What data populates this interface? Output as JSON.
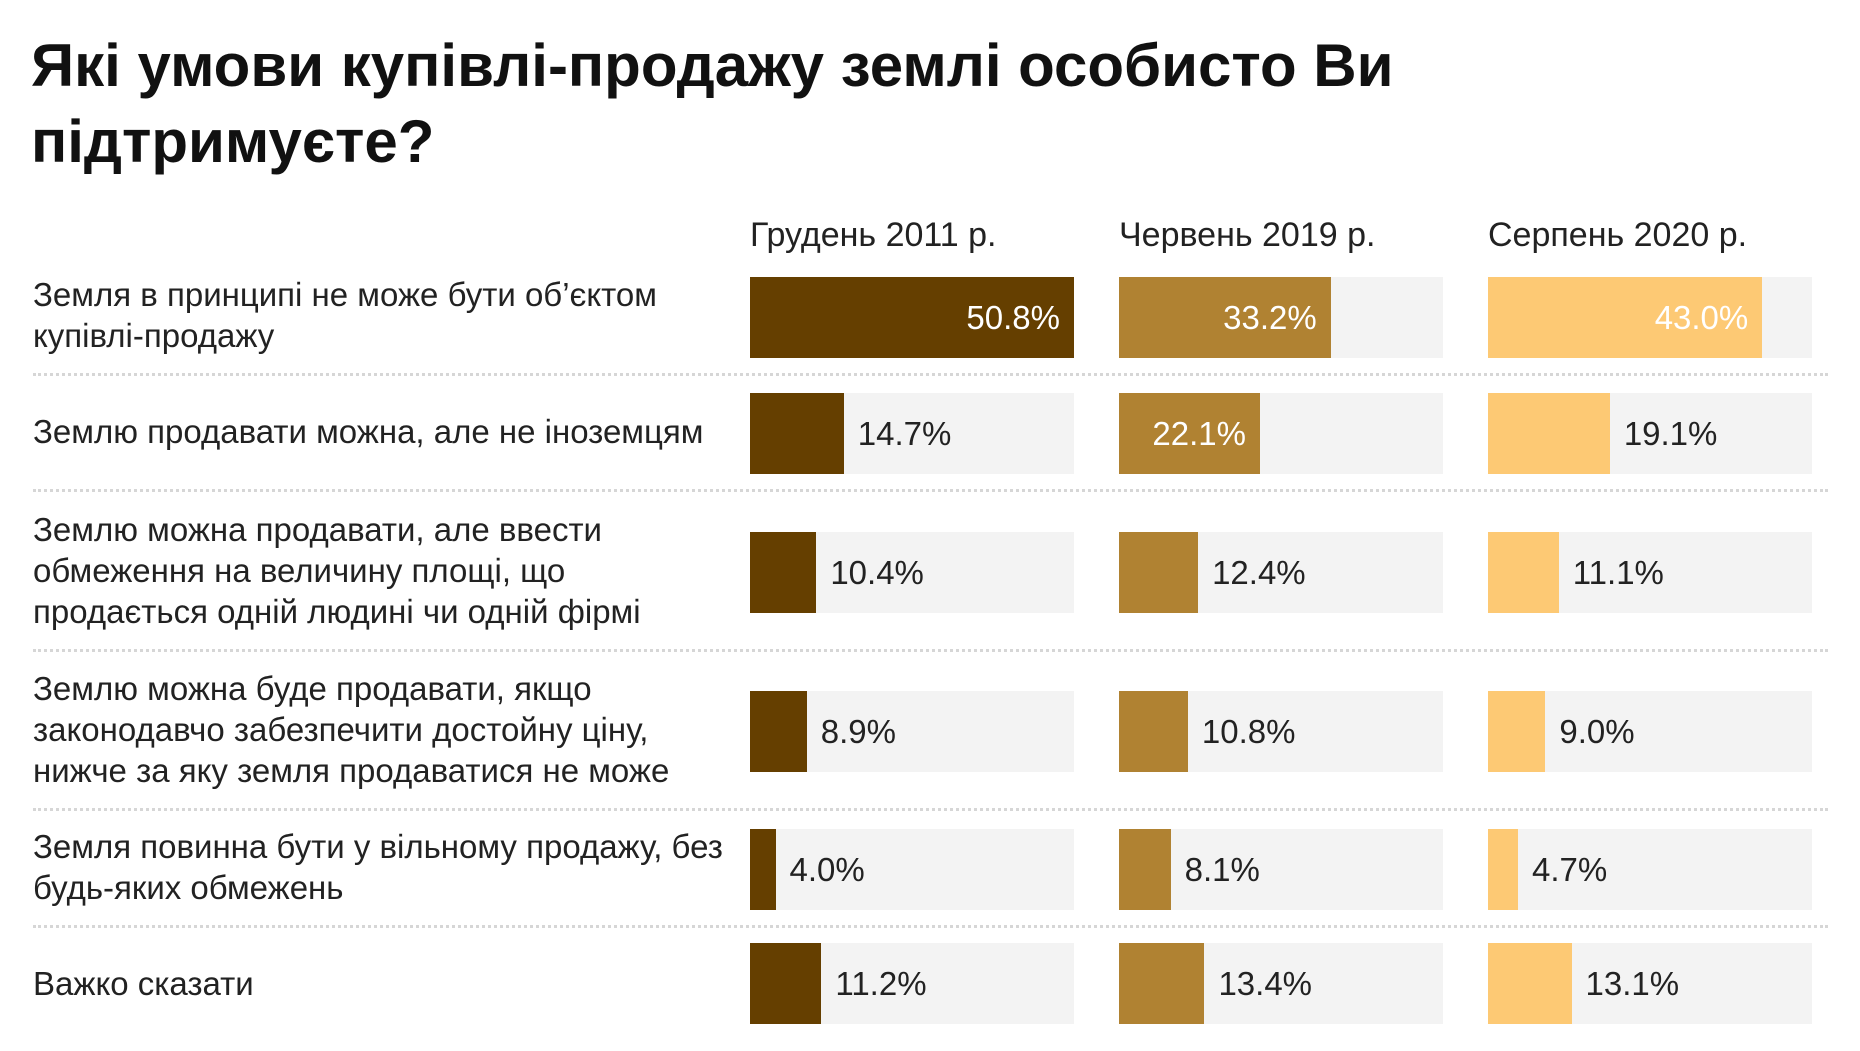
{
  "chart_data": {
    "type": "bar",
    "title": "Які умови купівлі-продажу землі особисто Ви підтримуєте?",
    "categories": [
      "Земля в принципі не може бути об’єктом купівлі-продажу",
      "Землю продавати можна, але не іноземцям",
      "Землю можна продавати, але ввести обмеження на величину площі, що продається одній людині чи одній фірмі",
      "Землю можна буде продавати, якщо законодавчо забезпечити достойну ціну, нижче за яку земля продаватися не може",
      "Земля повинна бути у вільному продажу, без будь-яких обмежень",
      "Важко сказати"
    ],
    "series": [
      {
        "name": "Грудень 2011 р.",
        "color": "#653f00",
        "values": [
          50.8,
          14.7,
          10.4,
          8.9,
          4.0,
          11.2
        ],
        "labels": [
          "50.8%",
          "14.7%",
          "10.4%",
          "8.9%",
          "4.0%",
          "11.2%"
        ]
      },
      {
        "name": "Червень 2019 р.",
        "color": "#b08232",
        "values": [
          33.2,
          22.1,
          12.4,
          10.8,
          8.1,
          13.4
        ],
        "labels": [
          "33.2%",
          "22.1%",
          "12.4%",
          "10.8%",
          "8.1%",
          "13.4%"
        ]
      },
      {
        "name": "Серпень 2020 р.",
        "color": "#fdc974",
        "values": [
          43.0,
          19.1,
          11.1,
          9.0,
          4.7,
          13.1
        ],
        "labels": [
          "43.0%",
          "19.1%",
          "11.1%",
          "9.0%",
          "4.7%",
          "13.1%"
        ]
      }
    ],
    "xlim": [
      0,
      50.8
    ],
    "unit": "%",
    "track_color": "#f3f3f3",
    "grid": false,
    "legend": "column headers"
  }
}
